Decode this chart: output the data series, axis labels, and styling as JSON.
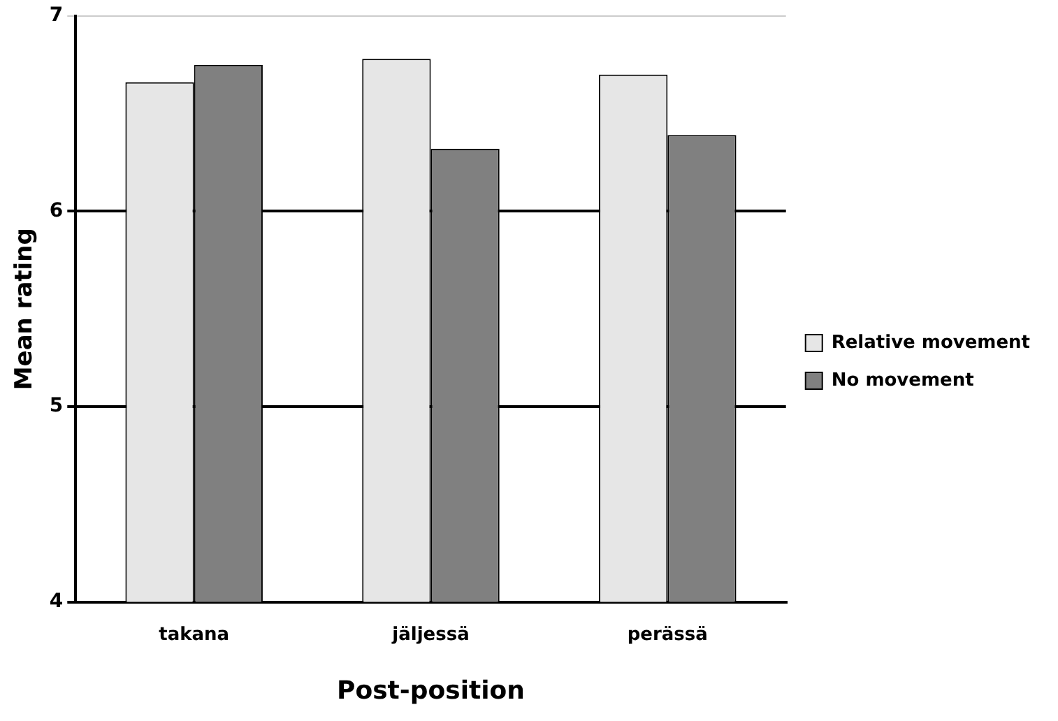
{
  "chart_data": {
    "type": "bar",
    "xlabel": "Post-position",
    "ylabel": "Mean rating",
    "categories": [
      "takana",
      "jäljessä",
      "perässä"
    ],
    "series": [
      {
        "name": "Relative movement",
        "color": "#e6e6e6",
        "values": [
          6.66,
          6.78,
          6.7
        ]
      },
      {
        "name": "No movement",
        "color": "#808080",
        "values": [
          6.75,
          6.32,
          6.39
        ]
      }
    ],
    "ylim": [
      4,
      7
    ],
    "yticks": [
      4,
      5,
      6,
      7
    ],
    "grid": "y",
    "legend": "right"
  }
}
